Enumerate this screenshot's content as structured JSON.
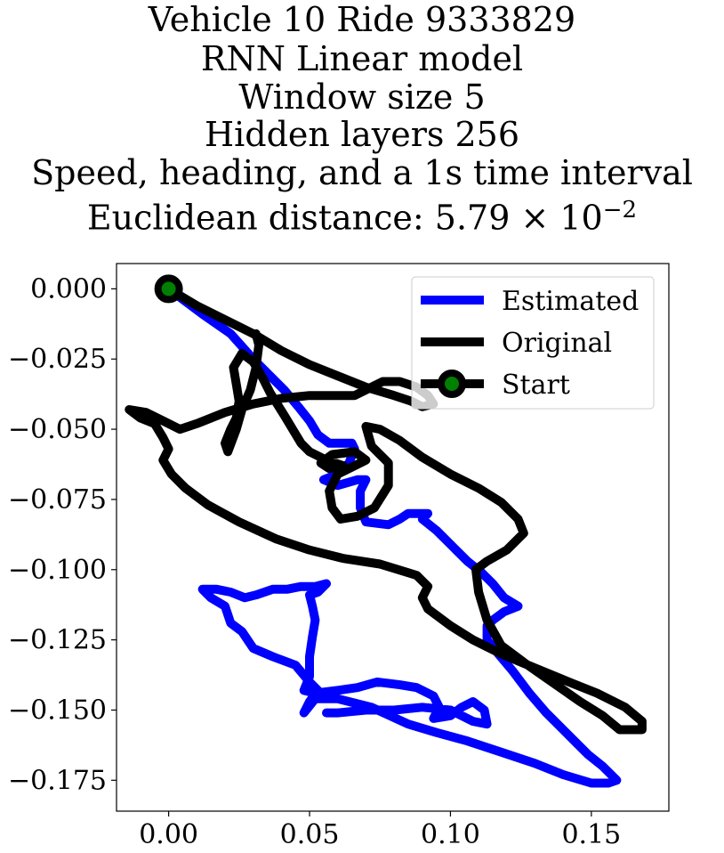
{
  "chart_data": {
    "type": "line",
    "title_lines": [
      "Vehicle 10 Ride 9333829",
      "RNN Linear model",
      "Window size 5",
      "Hidden layers 256",
      "Speed, heading, and a 1s time interval",
      "Euclidean distance: 5.79 × 10"
    ],
    "title_exponent": "−2",
    "xlabel": "",
    "ylabel": "",
    "xlim": [
      -0.0185,
      0.1775
    ],
    "ylim": [
      -0.186,
      0.009
    ],
    "x_ticks": [
      0.0,
      0.05,
      0.1,
      0.15
    ],
    "x_tick_labels": [
      "0.00",
      "0.05",
      "0.10",
      "0.15"
    ],
    "y_ticks": [
      0.0,
      -0.025,
      -0.05,
      -0.075,
      -0.1,
      -0.125,
      -0.15,
      -0.175
    ],
    "y_tick_labels": [
      "0.000",
      "−0.025",
      "−0.050",
      "−0.075",
      "−0.100",
      "−0.125",
      "−0.150",
      "−0.175"
    ],
    "legend_position": "top-right",
    "series": [
      {
        "name": "Estimated",
        "color": "#0000ff",
        "points": [
          [
            0.0,
            0.0
          ],
          [
            0.012,
            -0.009
          ],
          [
            0.022,
            -0.016
          ],
          [
            0.03,
            -0.025
          ],
          [
            0.036,
            -0.031
          ],
          [
            0.041,
            -0.036
          ],
          [
            0.046,
            -0.042
          ],
          [
            0.05,
            -0.047
          ],
          [
            0.053,
            -0.052
          ],
          [
            0.057,
            -0.055
          ],
          [
            0.065,
            -0.055
          ],
          [
            0.066,
            -0.057
          ],
          [
            0.064,
            -0.062
          ],
          [
            0.06,
            -0.066
          ],
          [
            0.055,
            -0.068
          ],
          [
            0.06,
            -0.07
          ],
          [
            0.067,
            -0.068
          ],
          [
            0.07,
            -0.068
          ],
          [
            0.068,
            -0.072
          ],
          [
            0.068,
            -0.078
          ],
          [
            0.07,
            -0.083
          ],
          [
            0.078,
            -0.084
          ],
          [
            0.082,
            -0.082
          ],
          [
            0.085,
            -0.08
          ],
          [
            0.092,
            -0.08
          ],
          [
            0.09,
            -0.082
          ],
          [
            0.095,
            -0.086
          ],
          [
            0.101,
            -0.092
          ],
          [
            0.106,
            -0.097
          ],
          [
            0.111,
            -0.101
          ],
          [
            0.115,
            -0.105
          ],
          [
            0.119,
            -0.11
          ],
          [
            0.124,
            -0.113
          ],
          [
            0.119,
            -0.115
          ],
          [
            0.115,
            -0.118
          ],
          [
            0.113,
            -0.12
          ],
          [
            0.113,
            -0.125
          ],
          [
            0.117,
            -0.13
          ],
          [
            0.122,
            -0.136
          ],
          [
            0.128,
            -0.144
          ],
          [
            0.134,
            -0.151
          ],
          [
            0.14,
            -0.157
          ],
          [
            0.145,
            -0.162
          ],
          [
            0.149,
            -0.166
          ],
          [
            0.154,
            -0.17
          ],
          [
            0.159,
            -0.175
          ],
          [
            0.156,
            -0.176
          ],
          [
            0.15,
            -0.176
          ],
          [
            0.14,
            -0.173
          ],
          [
            0.13,
            -0.169
          ],
          [
            0.118,
            -0.165
          ],
          [
            0.106,
            -0.161
          ],
          [
            0.095,
            -0.158
          ],
          [
            0.085,
            -0.155
          ],
          [
            0.072,
            -0.149
          ],
          [
            0.06,
            -0.146
          ],
          [
            0.052,
            -0.146
          ],
          [
            0.048,
            -0.151
          ],
          [
            0.05,
            -0.147
          ],
          [
            0.053,
            -0.143
          ],
          [
            0.05,
            -0.14
          ],
          [
            0.045,
            -0.134
          ],
          [
            0.037,
            -0.131
          ],
          [
            0.03,
            -0.128
          ],
          [
            0.026,
            -0.122
          ],
          [
            0.022,
            -0.119
          ],
          [
            0.02,
            -0.113
          ],
          [
            0.015,
            -0.11
          ],
          [
            0.012,
            -0.107
          ],
          [
            0.017,
            -0.107
          ],
          [
            0.022,
            -0.108
          ],
          [
            0.027,
            -0.11
          ],
          [
            0.031,
            -0.109
          ],
          [
            0.037,
            -0.107
          ],
          [
            0.042,
            -0.107
          ],
          [
            0.047,
            -0.106
          ],
          [
            0.052,
            -0.106
          ],
          [
            0.056,
            -0.105
          ],
          [
            0.053,
            -0.108
          ],
          [
            0.05,
            -0.109
          ],
          [
            0.051,
            -0.113
          ],
          [
            0.052,
            -0.118
          ],
          [
            0.051,
            -0.124
          ],
          [
            0.05,
            -0.131
          ],
          [
            0.05,
            -0.138
          ],
          [
            0.048,
            -0.143
          ],
          [
            0.052,
            -0.144
          ],
          [
            0.06,
            -0.143
          ],
          [
            0.067,
            -0.142
          ],
          [
            0.074,
            -0.14
          ],
          [
            0.082,
            -0.141
          ],
          [
            0.088,
            -0.142
          ],
          [
            0.094,
            -0.145
          ],
          [
            0.096,
            -0.149
          ],
          [
            0.094,
            -0.153
          ],
          [
            0.1,
            -0.152
          ],
          [
            0.104,
            -0.149
          ],
          [
            0.108,
            -0.147
          ],
          [
            0.112,
            -0.15
          ],
          [
            0.113,
            -0.155
          ],
          [
            0.108,
            -0.154
          ],
          [
            0.1,
            -0.15
          ],
          [
            0.09,
            -0.149
          ],
          [
            0.08,
            -0.15
          ],
          [
            0.07,
            -0.15
          ],
          [
            0.06,
            -0.151
          ],
          [
            0.056,
            -0.151
          ]
        ]
      },
      {
        "name": "Original",
        "color": "#000000",
        "points": [
          [
            0.0,
            0.0
          ],
          [
            0.01,
            -0.006
          ],
          [
            0.02,
            -0.011
          ],
          [
            0.03,
            -0.016
          ],
          [
            0.04,
            -0.022
          ],
          [
            0.05,
            -0.027
          ],
          [
            0.06,
            -0.031
          ],
          [
            0.07,
            -0.035
          ],
          [
            0.08,
            -0.038
          ],
          [
            0.086,
            -0.04
          ],
          [
            0.09,
            -0.042
          ],
          [
            0.094,
            -0.041
          ],
          [
            0.092,
            -0.038
          ],
          [
            0.088,
            -0.035
          ],
          [
            0.082,
            -0.033
          ],
          [
            0.076,
            -0.033
          ],
          [
            0.07,
            -0.036
          ],
          [
            0.066,
            -0.038
          ],
          [
            0.06,
            -0.038
          ],
          [
            0.05,
            -0.038
          ],
          [
            0.04,
            -0.039
          ],
          [
            0.03,
            -0.041
          ],
          [
            0.02,
            -0.044
          ],
          [
            0.01,
            -0.048
          ],
          [
            0.004,
            -0.05
          ],
          [
            -0.002,
            -0.047
          ],
          [
            -0.008,
            -0.044
          ],
          [
            -0.014,
            -0.043
          ],
          [
            -0.01,
            -0.046
          ],
          [
            -0.005,
            -0.048
          ],
          [
            -0.002,
            -0.053
          ],
          [
            0.0,
            -0.057
          ],
          [
            -0.002,
            -0.061
          ],
          [
            0.001,
            -0.066
          ],
          [
            0.006,
            -0.071
          ],
          [
            0.014,
            -0.077
          ],
          [
            0.025,
            -0.083
          ],
          [
            0.038,
            -0.089
          ],
          [
            0.05,
            -0.093
          ],
          [
            0.062,
            -0.096
          ],
          [
            0.075,
            -0.098
          ],
          [
            0.088,
            -0.102
          ],
          [
            0.092,
            -0.106
          ],
          [
            0.09,
            -0.11
          ],
          [
            0.092,
            -0.114
          ],
          [
            0.1,
            -0.12
          ],
          [
            0.108,
            -0.125
          ],
          [
            0.118,
            -0.13
          ],
          [
            0.13,
            -0.135
          ],
          [
            0.142,
            -0.14
          ],
          [
            0.152,
            -0.144
          ],
          [
            0.162,
            -0.149
          ],
          [
            0.168,
            -0.154
          ],
          [
            0.168,
            -0.157
          ],
          [
            0.164,
            -0.157
          ],
          [
            0.16,
            -0.157
          ],
          [
            0.154,
            -0.152
          ],
          [
            0.146,
            -0.147
          ],
          [
            0.136,
            -0.14
          ],
          [
            0.126,
            -0.133
          ],
          [
            0.118,
            -0.127
          ],
          [
            0.113,
            -0.118
          ],
          [
            0.11,
            -0.108
          ],
          [
            0.109,
            -0.1
          ],
          [
            0.113,
            -0.097
          ],
          [
            0.12,
            -0.093
          ],
          [
            0.126,
            -0.087
          ],
          [
            0.124,
            -0.082
          ],
          [
            0.118,
            -0.076
          ],
          [
            0.11,
            -0.071
          ],
          [
            0.1,
            -0.066
          ],
          [
            0.09,
            -0.06
          ],
          [
            0.082,
            -0.054
          ],
          [
            0.075,
            -0.05
          ],
          [
            0.07,
            -0.049
          ],
          [
            0.072,
            -0.056
          ],
          [
            0.078,
            -0.062
          ],
          [
            0.078,
            -0.07
          ],
          [
            0.073,
            -0.078
          ],
          [
            0.067,
            -0.081
          ],
          [
            0.061,
            -0.082
          ],
          [
            0.058,
            -0.078
          ],
          [
            0.057,
            -0.072
          ],
          [
            0.06,
            -0.066
          ],
          [
            0.066,
            -0.063
          ],
          [
            0.07,
            -0.061
          ],
          [
            0.066,
            -0.058
          ],
          [
            0.058,
            -0.059
          ],
          [
            0.054,
            -0.062
          ],
          [
            0.057,
            -0.064
          ],
          [
            0.062,
            -0.063
          ],
          [
            0.056,
            -0.061
          ],
          [
            0.05,
            -0.058
          ],
          [
            0.047,
            -0.055
          ],
          [
            0.041,
            -0.045
          ],
          [
            0.036,
            -0.037
          ],
          [
            0.033,
            -0.031
          ],
          [
            0.03,
            -0.026
          ],
          [
            0.026,
            -0.023
          ],
          [
            0.023,
            -0.028
          ],
          [
            0.024,
            -0.034
          ],
          [
            0.025,
            -0.04
          ],
          [
            0.024,
            -0.046
          ],
          [
            0.022,
            -0.05
          ],
          [
            0.02,
            -0.055
          ],
          [
            0.021,
            -0.058
          ],
          [
            0.024,
            -0.05
          ],
          [
            0.026,
            -0.043
          ],
          [
            0.029,
            -0.036
          ],
          [
            0.031,
            -0.028
          ],
          [
            0.032,
            -0.02
          ],
          [
            0.031,
            -0.016
          ]
        ]
      },
      {
        "name": "Start",
        "color": "#000000",
        "marker_face": "#008000",
        "points": [
          [
            0.0,
            0.0
          ]
        ]
      }
    ]
  }
}
